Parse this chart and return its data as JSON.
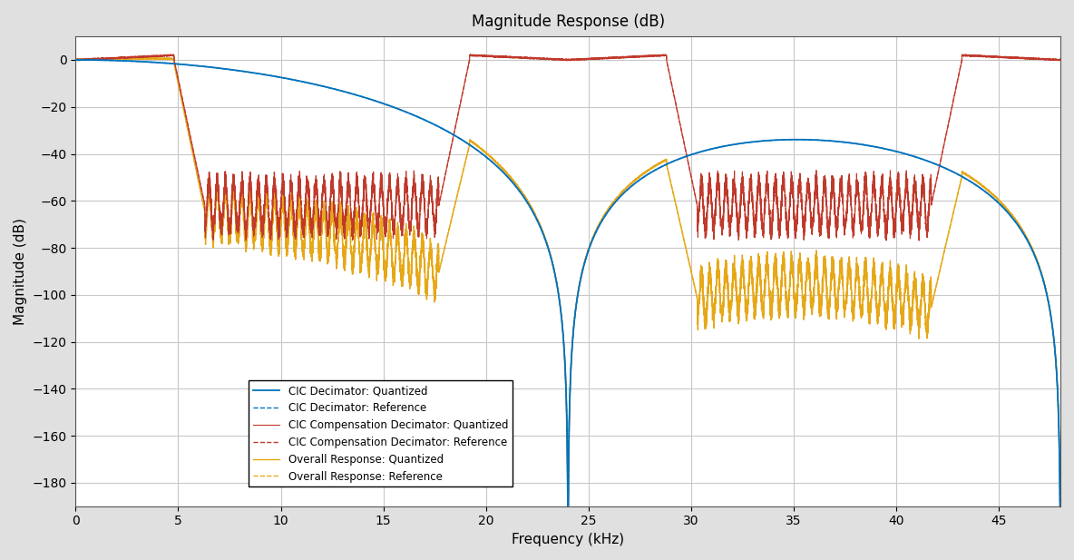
{
  "title": "Magnitude Response (dB)",
  "xlabel": "Frequency (kHz)",
  "ylabel": "Magnitude (dB)",
  "xlim": [
    0,
    48
  ],
  "ylim": [
    -190,
    10
  ],
  "yticks": [
    0,
    -20,
    -40,
    -60,
    -80,
    -100,
    -120,
    -140,
    -160,
    -180
  ],
  "xticks": [
    0,
    5,
    10,
    15,
    20,
    25,
    30,
    35,
    40,
    45
  ],
  "bg_color": "#e0e0e0",
  "axes_bg_color": "#ffffff",
  "grid_color": "#c8c8c8",
  "colors": {
    "cic_q": "#0072bd",
    "cic_ref": "#0072bd",
    "comp_q": "#c0392b",
    "comp_ref": "#c0392b",
    "overall_q": "#e6a817",
    "overall_ref": "#e6a817"
  },
  "legend_labels": [
    "CIC Decimator: Quantized",
    "CIC Decimator: Reference",
    "CIC Compensation Decimator: Quantized",
    "CIC Compensation Decimator: Reference",
    "Overall Response: Quantized",
    "Overall Response: Reference"
  ]
}
